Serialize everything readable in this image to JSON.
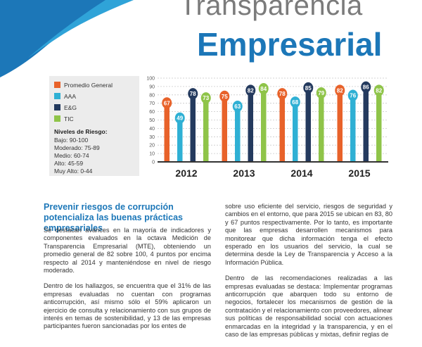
{
  "header": {
    "title_line1": "Transparencia",
    "title_line2": "Empresarial"
  },
  "legend": {
    "items": [
      {
        "label": "Promedio General",
        "color": "#e8622a"
      },
      {
        "label": "AAA",
        "color": "#2fb0d4"
      },
      {
        "label": "E&G",
        "color": "#243a5e"
      },
      {
        "label": "TIC",
        "color": "#8fc449"
      }
    ]
  },
  "risk": {
    "title": "Niveles de Riesgo:",
    "levels": [
      "Bajo: 90-100",
      "Moderado: 75-89",
      "Medio: 60-74",
      "Alto: 45-59",
      "Muy Alto: 0-44"
    ]
  },
  "chart_data": {
    "type": "bar",
    "categories": [
      "2012",
      "2013",
      "2014",
      "2015"
    ],
    "series": [
      {
        "name": "Promedio General",
        "values": [
          67,
          75,
          78,
          82
        ],
        "color": "#e8622a"
      },
      {
        "name": "AAA",
        "values": [
          49,
          63,
          68,
          76
        ],
        "color": "#2fb0d4"
      },
      {
        "name": "E&G",
        "values": [
          78,
          82,
          85,
          86
        ],
        "color": "#243a5e"
      },
      {
        "name": "TIC",
        "values": [
          73,
          84,
          79,
          82
        ],
        "color": "#8fc449"
      }
    ],
    "y_ticks": [
      "0",
      "10",
      "20",
      "30",
      "40",
      "50",
      "60",
      "70",
      "80",
      "90",
      "100"
    ],
    "ylim": [
      0,
      100
    ],
    "grid": true
  },
  "article": {
    "heading": "Prevenir riesgos de corrupción potencializa las buenas prácticas empresariales",
    "col1_p1": "Se destacan avances en la mayoría de indicadores y componentes evaluados en la octava Medición de Transparencia Empresarial (MTE), obteniendo un promedio general de 82 sobre 100, 4 puntos por encima respecto al 2014 y manteniéndose en nivel de riesgo moderado.",
    "col1_p2": "Dentro de los hallazgos, se encuentra que el 31% de las empresas evaluadas no cuentan con programas anticorrupción, así mismo sólo el 59% aplicaron un ejercicio de consulta y relacionamiento con sus grupos de interés en temas de sostenibilidad, y 13 de las empresas participantes fueron sancionadas por los entes de",
    "col2_p1": "sobre uso eficiente del servicio, riesgos de seguridad y cambios en el entorno, que para 2015 se ubican en 83, 80 y 67 puntos respectivamente. Por lo tanto, es importante que las empresas desarrollen mecanismos para monitorear que dicha información tenga el efecto esperado en los usuarios del servicio, la cual se determina desde la Ley de Transparencia y Acceso a la Información Pública.",
    "col2_p2": "Dentro de las recomendaciones realizadas a las empresas evaluadas se destaca: Implementar programas anticorrupción que abarquen todo su entorno de negocios, fortalecer los mecanismos de gestión de la contratación y el relacionamiento con proveedores, alinear sus políticas de responsabilidad social con actuaciones enmarcadas en la integridad y la transparencia, y en el caso de las empresas públicas y mixtas, definir reglas de"
  }
}
